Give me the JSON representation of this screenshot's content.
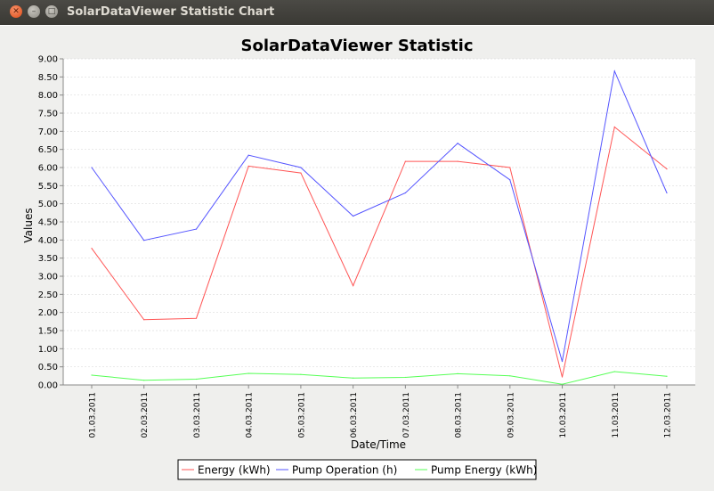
{
  "window": {
    "title": "SolarDataViewer Statistic Chart",
    "close_glyph": "✕",
    "min_glyph": "–",
    "max_glyph": "□"
  },
  "chart_data": {
    "type": "line",
    "title": "SolarDataViewer Statistic",
    "xlabel": "Date/Time",
    "ylabel": "Values",
    "categories": [
      "01.03.2011",
      "02.03.2011",
      "03.03.2011",
      "04.03.2011",
      "05.03.2011",
      "06.03.2011",
      "07.03.2011",
      "08.03.2011",
      "09.03.2011",
      "10.03.2011",
      "11.03.2011",
      "12.03.2011"
    ],
    "ylim": [
      0,
      9
    ],
    "yticks": [
      "0.00",
      "0.50",
      "1.00",
      "1.50",
      "2.00",
      "2.50",
      "3.00",
      "3.50",
      "4.00",
      "4.50",
      "5.00",
      "5.50",
      "6.00",
      "6.50",
      "7.00",
      "7.50",
      "8.00",
      "8.50",
      "9.00"
    ],
    "grid": true,
    "legend_position": "bottom",
    "series": [
      {
        "name": "Energy (kWh)",
        "color": "#ff5555",
        "values": [
          3.77,
          1.8,
          1.84,
          6.04,
          5.85,
          2.74,
          6.17,
          6.17,
          6.0,
          0.22,
          7.12,
          5.96
        ]
      },
      {
        "name": "Pump Operation (h)",
        "color": "#5555ff",
        "values": [
          6.0,
          3.99,
          4.3,
          6.34,
          6.0,
          4.66,
          5.3,
          6.67,
          5.66,
          0.65,
          8.66,
          5.3
        ]
      },
      {
        "name": "Pump Energy (kWh)",
        "color": "#55ff55",
        "values": [
          0.27,
          0.13,
          0.16,
          0.32,
          0.29,
          0.19,
          0.21,
          0.31,
          0.25,
          0.02,
          0.37,
          0.24
        ]
      }
    ]
  }
}
